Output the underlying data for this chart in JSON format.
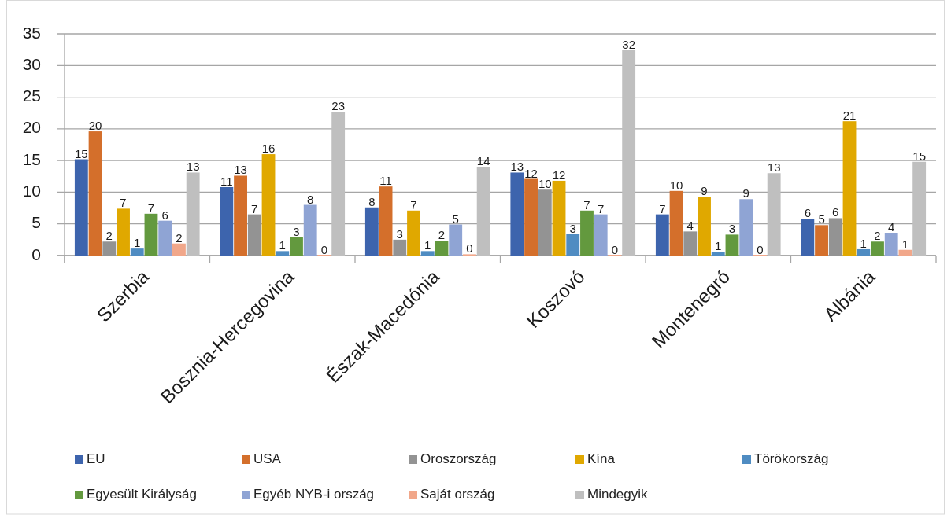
{
  "chart_data": {
    "type": "bar",
    "categories": [
      "Szerbia",
      "Bosznia-Hercegovina",
      "Észak-Macedónia",
      "Koszovó",
      "Montenegró",
      "Albánia"
    ],
    "series": [
      {
        "name": "EU",
        "color": "#3d64ad",
        "values": [
          15.2,
          10.8,
          7.6,
          13.1,
          6.5,
          5.8
        ],
        "value_labels": [
          "15",
          "11",
          "8",
          "13",
          "7",
          "6"
        ]
      },
      {
        "name": "USA",
        "color": "#d46f2b",
        "values": [
          19.6,
          12.6,
          10.9,
          12.1,
          10.2,
          4.8
        ],
        "value_labels": [
          "20",
          "13",
          "11",
          "12",
          "10",
          "5"
        ]
      },
      {
        "name": "Oroszország",
        "color": "#939393",
        "values": [
          2.2,
          6.5,
          2.5,
          10.4,
          3.8,
          5.9
        ],
        "value_labels": [
          "2",
          "7",
          "3",
          "10",
          "4",
          "6"
        ]
      },
      {
        "name": "Kína",
        "color": "#e0a800",
        "values": [
          7.4,
          16.0,
          7.1,
          11.8,
          9.3,
          21.2
        ],
        "value_labels": [
          "7",
          "16",
          "7",
          "12",
          "9",
          "21"
        ]
      },
      {
        "name": "Törökország",
        "color": "#4f8cc2",
        "values": [
          1.1,
          0.7,
          0.7,
          3.4,
          0.6,
          1.0
        ],
        "value_labels": [
          "1",
          "1",
          "1",
          "3",
          "1",
          "1"
        ]
      },
      {
        "name": "Egyesült Királyság",
        "color": "#63993e",
        "values": [
          6.6,
          2.9,
          2.3,
          7.1,
          3.3,
          2.2
        ],
        "value_labels": [
          "7",
          "3",
          "2",
          "7",
          "3",
          "2"
        ]
      },
      {
        "name": "Egyéb NYB-i ország",
        "color": "#8fa4d4",
        "values": [
          5.5,
          8.0,
          4.9,
          6.5,
          8.9,
          3.6
        ],
        "value_labels": [
          "6",
          "8",
          "5",
          "7",
          "9",
          "4"
        ]
      },
      {
        "name": "Saját ország",
        "color": "#f1a78a",
        "values": [
          1.9,
          0,
          0.2,
          0,
          0,
          0.9
        ],
        "value_labels": [
          "2",
          "0",
          "0",
          "0",
          "0",
          "1"
        ]
      },
      {
        "name": "Mindegyik",
        "color": "#bfbfbf",
        "values": [
          13.1,
          22.7,
          14.0,
          32.4,
          13.0,
          14.8
        ],
        "value_labels": [
          "13",
          "23",
          "14",
          "32",
          "13",
          "15"
        ]
      }
    ],
    "ylim": [
      0,
      35
    ],
    "yticks": [
      0,
      5,
      10,
      15,
      20,
      25,
      30,
      35
    ],
    "grid": "y",
    "legend": "bottom"
  }
}
